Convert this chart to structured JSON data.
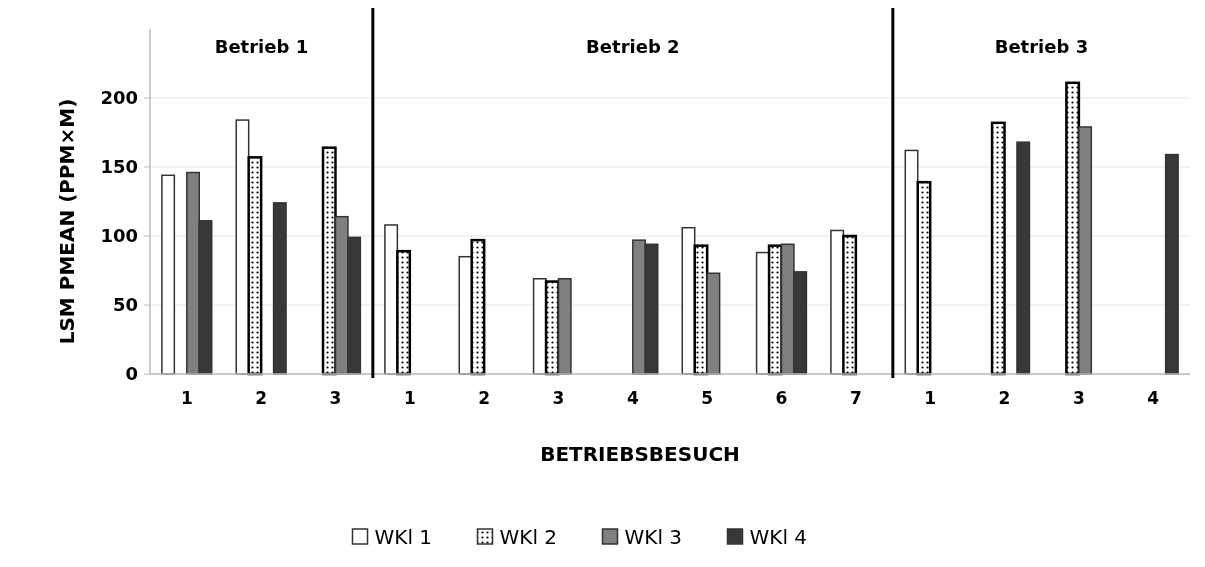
{
  "chart_data": {
    "type": "bar",
    "categories": [
      "1",
      "2",
      "3",
      "1",
      "2",
      "3",
      "4",
      "5",
      "6",
      "7",
      "1",
      "2",
      "3",
      "4"
    ],
    "series": [
      {
        "name": "WKl 1",
        "color": "#ffffff",
        "values": [
          144,
          184,
          null,
          108,
          85,
          69,
          null,
          106,
          88,
          104,
          162,
          null,
          null,
          null
        ]
      },
      {
        "name": "WKl 2",
        "color": "#000000",
        "values": [
          null,
          157,
          164,
          89,
          97,
          67,
          null,
          93,
          93,
          100,
          139,
          182,
          211,
          null
        ]
      },
      {
        "name": "WKl 3",
        "color": "#808080",
        "values": [
          146,
          null,
          114,
          null,
          null,
          69,
          97,
          73,
          94,
          null,
          null,
          null,
          179,
          null
        ]
      },
      {
        "name": "WKl 4",
        "color": "#383838",
        "values": [
          111,
          124,
          99,
          null,
          null,
          null,
          94,
          null,
          74,
          null,
          null,
          168,
          null,
          159
        ]
      }
    ],
    "xlabel": "BETRIEBSBESUCH",
    "ylabel": "LSM PMEAN (PPM×M)",
    "ylim": [
      0,
      250
    ],
    "yticks": [
      0,
      50,
      100,
      150,
      200
    ],
    "annotations": [
      "Betrieb 1",
      "Betrieb 2",
      "Betrieb 3"
    ],
    "grid": "y",
    "legend": "bottom"
  }
}
